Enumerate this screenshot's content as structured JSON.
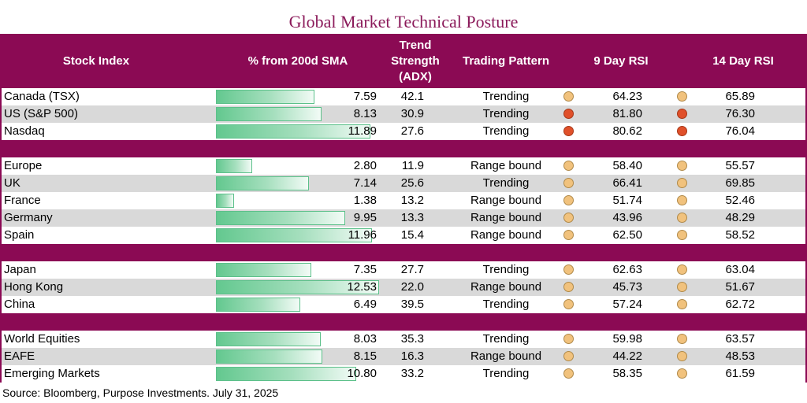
{
  "title": "Global Market Technical Posture",
  "headers": {
    "index": "Stock Index",
    "pct": "% from 200d SMA",
    "adx_line1": "Trend",
    "adx_line2": "Strength",
    "adx_line3": "(ADX)",
    "pattern": "Trading Pattern",
    "rsi9": "9 Day RSI",
    "rsi14": "14 Day RSI"
  },
  "groups": [
    {
      "rows": [
        {
          "name": "Canada (TSX)",
          "pct": "7.59",
          "adx": "42.1",
          "pattern": "Trending",
          "rsi9": "64.23",
          "rsi9_status": "neutral",
          "rsi14": "65.89",
          "rsi14_status": "neutral"
        },
        {
          "name": "US (S&P 500)",
          "pct": "8.13",
          "adx": "30.9",
          "pattern": "Trending",
          "rsi9": "81.80",
          "rsi9_status": "overbought",
          "rsi14": "76.30",
          "rsi14_status": "overbought"
        },
        {
          "name": "Nasdaq",
          "pct": "11.89",
          "adx": "27.6",
          "pattern": "Trending",
          "rsi9": "80.62",
          "rsi9_status": "overbought",
          "rsi14": "76.04",
          "rsi14_status": "overbought"
        }
      ]
    },
    {
      "rows": [
        {
          "name": "Europe",
          "pct": "2.80",
          "adx": "11.9",
          "pattern": "Range bound",
          "rsi9": "58.40",
          "rsi9_status": "neutral",
          "rsi14": "55.57",
          "rsi14_status": "neutral"
        },
        {
          "name": "UK",
          "pct": "7.14",
          "adx": "25.6",
          "pattern": "Trending",
          "rsi9": "66.41",
          "rsi9_status": "neutral",
          "rsi14": "69.85",
          "rsi14_status": "neutral"
        },
        {
          "name": "France",
          "pct": "1.38",
          "adx": "13.2",
          "pattern": "Range bound",
          "rsi9": "51.74",
          "rsi9_status": "neutral",
          "rsi14": "52.46",
          "rsi14_status": "neutral"
        },
        {
          "name": "Germany",
          "pct": "9.95",
          "adx": "13.3",
          "pattern": "Range bound",
          "rsi9": "43.96",
          "rsi9_status": "neutral",
          "rsi14": "48.29",
          "rsi14_status": "neutral"
        },
        {
          "name": "Spain",
          "pct": "11.96",
          "adx": "15.4",
          "pattern": "Range bound",
          "rsi9": "62.50",
          "rsi9_status": "neutral",
          "rsi14": "58.52",
          "rsi14_status": "neutral"
        }
      ]
    },
    {
      "rows": [
        {
          "name": "Japan",
          "pct": "7.35",
          "adx": "27.7",
          "pattern": "Trending",
          "rsi9": "62.63",
          "rsi9_status": "neutral",
          "rsi14": "63.04",
          "rsi14_status": "neutral"
        },
        {
          "name": "Hong Kong",
          "pct": "12.53",
          "adx": "22.0",
          "pattern": "Range bound",
          "rsi9": "45.73",
          "rsi9_status": "neutral",
          "rsi14": "51.67",
          "rsi14_status": "neutral"
        },
        {
          "name": "China",
          "pct": "6.49",
          "adx": "39.5",
          "pattern": "Trending",
          "rsi9": "57.24",
          "rsi9_status": "neutral",
          "rsi14": "62.72",
          "rsi14_status": "neutral"
        }
      ]
    },
    {
      "rows": [
        {
          "name": "World Equities",
          "pct": "8.03",
          "adx": "35.3",
          "pattern": "Trending",
          "rsi9": "59.98",
          "rsi9_status": "neutral",
          "rsi14": "63.57",
          "rsi14_status": "neutral"
        },
        {
          "name": "EAFE",
          "pct": "8.15",
          "adx": "16.3",
          "pattern": "Range bound",
          "rsi9": "44.22",
          "rsi9_status": "neutral",
          "rsi14": "48.53",
          "rsi14_status": "neutral"
        },
        {
          "name": "Emerging Markets",
          "pct": "10.80",
          "adx": "33.2",
          "pattern": "Trending",
          "rsi9": "58.35",
          "rsi9_status": "neutral",
          "rsi14": "61.59",
          "rsi14_status": "neutral"
        }
      ]
    }
  ],
  "colors": {
    "header_bg": "#8b0a54",
    "title": "#8b1a5a",
    "dot_neutral": "#f1c27d",
    "dot_overbought": "#e0502a",
    "bar": "#63c88f"
  },
  "source": "Source: Bloomberg, Purpose Investments. July  31, 2025"
}
